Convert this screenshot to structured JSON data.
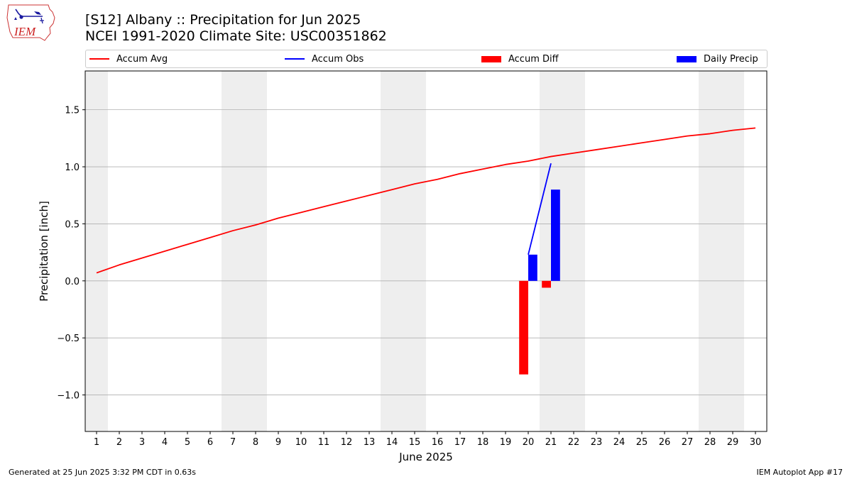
{
  "header": {
    "title_line1": "[S12] Albany :: Precipitation for Jun 2025",
    "title_line2": "NCEI 1991-2020 Climate Site: USC00351862",
    "logo_text": "IEM"
  },
  "footer": {
    "generated": "Generated at 25 Jun 2025 3:32 PM CDT in 0.63s",
    "app": "IEM Autoplot App #17"
  },
  "colors": {
    "accum_avg": "#ff0000",
    "accum_obs": "#0000ff",
    "accum_diff": "#ff0000",
    "daily_precip": "#0000ff",
    "weekend_shade": "#eeeeee",
    "grid": "#b0b0b0"
  },
  "chart_data": {
    "type": "bar",
    "xlabel": "June 2025",
    "ylabel": "Precipitation [inch]",
    "xlim": [
      0.5,
      30.5
    ],
    "ylim": [
      -1.32,
      1.84
    ],
    "x_ticks": [
      1,
      2,
      3,
      4,
      5,
      6,
      7,
      8,
      9,
      10,
      11,
      12,
      13,
      14,
      15,
      16,
      17,
      18,
      19,
      20,
      21,
      22,
      23,
      24,
      25,
      26,
      27,
      28,
      29,
      30
    ],
    "y_ticks": [
      -1.0,
      -0.5,
      0.0,
      0.5,
      1.0,
      1.5
    ],
    "y_tick_labels": [
      "−1.0",
      "−0.5",
      "0.0",
      "0.5",
      "1.0",
      "1.5"
    ],
    "grid": "horizontal",
    "weekend_bands": [
      [
        0.5,
        1.5
      ],
      [
        6.5,
        8.5
      ],
      [
        13.5,
        15.5
      ],
      [
        20.5,
        22.5
      ],
      [
        27.5,
        29.5
      ]
    ],
    "legend": {
      "placement": "top, above plot",
      "entries": [
        "Accum Avg",
        "Accum Obs",
        "Accum Diff",
        "Daily Precip"
      ]
    },
    "series": [
      {
        "name": "Accum Avg",
        "kind": "line",
        "x": [
          1,
          2,
          3,
          4,
          5,
          6,
          7,
          8,
          9,
          10,
          11,
          12,
          13,
          14,
          15,
          16,
          17,
          18,
          19,
          20,
          21,
          22,
          23,
          24,
          25,
          26,
          27,
          28,
          29,
          30
        ],
        "values": [
          0.07,
          0.14,
          0.2,
          0.26,
          0.32,
          0.38,
          0.44,
          0.49,
          0.55,
          0.6,
          0.65,
          0.7,
          0.75,
          0.8,
          0.85,
          0.89,
          0.94,
          0.98,
          1.02,
          1.05,
          1.09,
          1.12,
          1.15,
          1.18,
          1.21,
          1.24,
          1.27,
          1.29,
          1.32,
          1.34
        ]
      },
      {
        "name": "Accum Obs",
        "kind": "line",
        "x": [
          20,
          21
        ],
        "values": [
          0.23,
          1.03
        ]
      },
      {
        "name": "Accum Diff",
        "kind": "bar",
        "x": [
          20,
          21
        ],
        "values": [
          -0.82,
          -0.06
        ]
      },
      {
        "name": "Daily Precip",
        "kind": "bar",
        "x": [
          20,
          21
        ],
        "values": [
          0.23,
          0.8
        ]
      }
    ]
  }
}
